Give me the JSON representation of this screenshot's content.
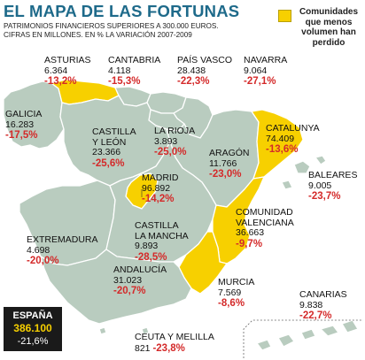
{
  "header": {
    "title": "EL MAPA DE LAS FORTUNAS",
    "subtitle_line1": "PATRIMONIOS FINANCIEROS SUPERIORES A 300.000 EUROS.",
    "subtitle_line2": "CIFRAS EN MILLONES. EN % LA VARIACIÓN 2007-2009"
  },
  "legend": {
    "label": "Comunidades que menos volumen han perdido",
    "color": "#f7d000"
  },
  "colors": {
    "map_fill": "#b9ccbf",
    "highlight_fill": "#f7d000",
    "border": "#ffffff",
    "sea": "#ffffff",
    "negative_text": "#d42a2a"
  },
  "regions": {
    "asturias": {
      "name": "ASTURIAS",
      "value": "6.364",
      "pct": "-13,2%",
      "highlighted": true
    },
    "cantabria": {
      "name": "CANTABRIA",
      "value": "4.118",
      "pct": "-15,3%",
      "highlighted": false
    },
    "pais_vasco": {
      "name": "PAÍS VASCO",
      "value": "28.438",
      "pct": "-22,3%",
      "highlighted": false
    },
    "navarra": {
      "name": "NAVARRA",
      "value": "9.064",
      "pct": "-27,1%",
      "highlighted": false
    },
    "galicia": {
      "name": "GALICIA",
      "value": "16.283",
      "pct": "-17,5%",
      "highlighted": false
    },
    "castilla_leon": {
      "name": "CASTILLA\nY LEÓN",
      "name_line1": "CASTILLA",
      "name_line2": "Y LEÓN",
      "value": "23.366",
      "pct": "-25,6%",
      "highlighted": false
    },
    "la_rioja": {
      "name": "LA RIOJA",
      "value": "3.893",
      "pct": "-25,0%",
      "highlighted": false
    },
    "aragon": {
      "name": "ARAGÓN",
      "value": "11.766",
      "pct": "-23,0%",
      "highlighted": false
    },
    "catalunya": {
      "name": "CATALUNYA",
      "value": "74.409",
      "pct": "-13,6%",
      "highlighted": true
    },
    "baleares": {
      "name": "BALEARES",
      "value": "9.005",
      "pct": "-23,7%",
      "highlighted": false
    },
    "madrid": {
      "name": "MADRID",
      "value": "96.892",
      "pct": "-14,2%",
      "highlighted": true
    },
    "extremadura": {
      "name": "EXTREMADURA",
      "value": "4.698",
      "pct": "-20,0%",
      "highlighted": false
    },
    "castilla_mancha": {
      "name_line1": "CASTILLA",
      "name_line2": "LA MANCHA",
      "value": "9.893",
      "pct": "-28,5%",
      "highlighted": false
    },
    "comunidad_valenciana": {
      "name_line1": "COMUNIDAD",
      "name_line2": "VALENCIANA",
      "value": "36.663",
      "pct": "-9,7%",
      "highlighted": true
    },
    "andalucia": {
      "name": "ANDALUCÍA",
      "value": "31.023",
      "pct": "-20,7%",
      "highlighted": false
    },
    "murcia": {
      "name": "MURCIA",
      "value": "7.569",
      "pct": "-8,6%",
      "highlighted": true
    },
    "canarias": {
      "name": "CANARIAS",
      "value": "9.838",
      "pct": "-22,7%",
      "highlighted": false
    },
    "ceuta_melilla": {
      "name": "CEUTA Y MELILLA",
      "value": "821",
      "pct": "-23,8%",
      "highlighted": false
    }
  },
  "total": {
    "name": "ESPAÑA",
    "value": "386.100",
    "pct": "-21,6%"
  }
}
